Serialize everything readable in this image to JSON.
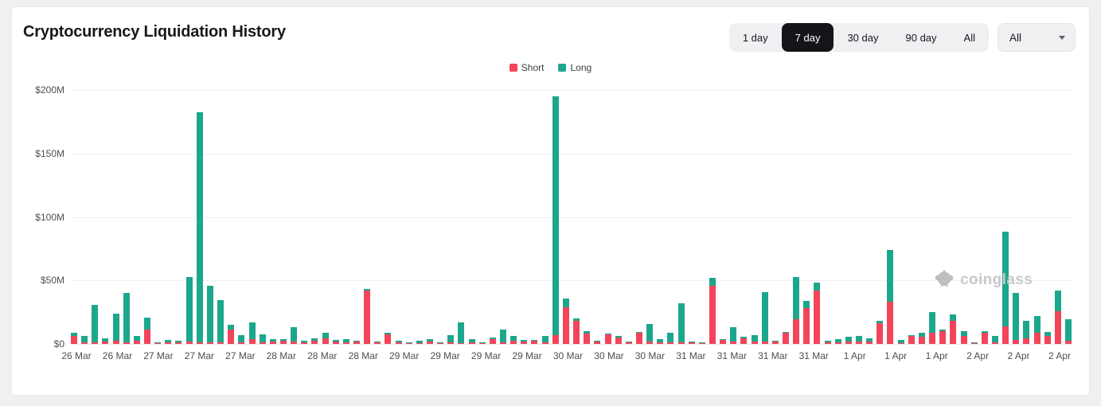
{
  "header": {
    "title": "Cryptocurrency Liquidation History",
    "range_buttons": {
      "options": [
        "1 day",
        "7 day",
        "30 day",
        "90 day",
        "All"
      ],
      "active": "7 day"
    },
    "symbol_dropdown": {
      "value": "All"
    }
  },
  "legend": {
    "items": [
      {
        "label": "Short",
        "color": "#f4445a"
      },
      {
        "label": "Long",
        "color": "#1ca78c"
      }
    ]
  },
  "watermark": {
    "text": "coinglass"
  },
  "chart_data": {
    "type": "bar",
    "stacked": true,
    "title": "Cryptocurrency Liquidation History",
    "unit": "USD millions (values read from $-axis)",
    "ylim": [
      0,
      200
    ],
    "grid": "horizontal-dashed",
    "legend_position": "top-center",
    "y_ticks": [
      {
        "value": 0,
        "label": "$0"
      },
      {
        "value": 50,
        "label": "$50M"
      },
      {
        "value": 100,
        "label": "$100M"
      },
      {
        "value": 150,
        "label": "$150M"
      },
      {
        "value": 200,
        "label": "$200M"
      }
    ],
    "x_tick_labels": [
      "26 Mar",
      "26 Mar",
      "27 Mar",
      "27 Mar",
      "27 Mar",
      "28 Mar",
      "28 Mar",
      "28 Mar",
      "29 Mar",
      "29 Mar",
      "29 Mar",
      "29 Mar",
      "30 Mar",
      "30 Mar",
      "30 Mar",
      "31 Mar",
      "31 Mar",
      "31 Mar",
      "31 Mar",
      "1 Apr",
      "1 Apr",
      "1 Apr",
      "2 Apr",
      "2 Apr",
      "2 Apr"
    ],
    "series": [
      {
        "name": "Short",
        "color": "#f4445a",
        "values": [
          6,
          1.5,
          1.5,
          2,
          2.5,
          1,
          2.5,
          11,
          0.5,
          1.5,
          1,
          2,
          1.5,
          1,
          1,
          11.5,
          1,
          3.5,
          1,
          2,
          2.5,
          2,
          1,
          2.5,
          4.5,
          2,
          1.3,
          1.8,
          42,
          1.5,
          7.5,
          1,
          0.4,
          0.8,
          1.7,
          0.5,
          1,
          0.5,
          1.5,
          0.3,
          3.5,
          1.5,
          2.5,
          2,
          2.3,
          1,
          7,
          29,
          18,
          8,
          1.8,
          7.5,
          5,
          1,
          8.5,
          2,
          1.5,
          1.5,
          1,
          1.2,
          0.3,
          46,
          3.2,
          2,
          4.5,
          2,
          2,
          2.2,
          8.5,
          19.5,
          28,
          42,
          1.5,
          1,
          2,
          2,
          2,
          16,
          33,
          0.5,
          6,
          5.5,
          9,
          10,
          18.5,
          6,
          0.6,
          8.5,
          1.5,
          13.5,
          3,
          4.5,
          9,
          6.5,
          26,
          2.5
        ]
      },
      {
        "name": "Long",
        "color": "#1ca78c",
        "values": [
          3,
          5,
          29.5,
          2.5,
          21.5,
          39,
          3.5,
          10,
          0.5,
          1.7,
          1.7,
          50.5,
          181,
          44.5,
          33.5,
          3.5,
          6,
          13.5,
          6.5,
          2,
          1.5,
          11,
          1.5,
          2,
          4,
          1.2,
          2.5,
          0.3,
          1.5,
          0.3,
          1,
          1.3,
          0.4,
          2,
          1.9,
          0.5,
          6,
          16.5,
          2.3,
          0.4,
          1.5,
          9.5,
          3.5,
          1.4,
          0.3,
          5.5,
          188,
          6.5,
          2,
          2,
          0.3,
          0.8,
          1,
          0.2,
          1,
          13.5,
          2,
          7.5,
          31,
          0.3,
          0.3,
          6,
          0.5,
          11,
          1,
          5,
          39,
          0.5,
          1,
          33,
          6,
          6.5,
          1,
          3,
          3.5,
          4.5,
          2.5,
          2.5,
          41,
          2.5,
          1,
          3,
          16,
          1.5,
          4.5,
          4,
          0.6,
          1.5,
          5,
          75,
          37,
          14,
          13,
          3,
          16,
          17
        ]
      }
    ]
  }
}
